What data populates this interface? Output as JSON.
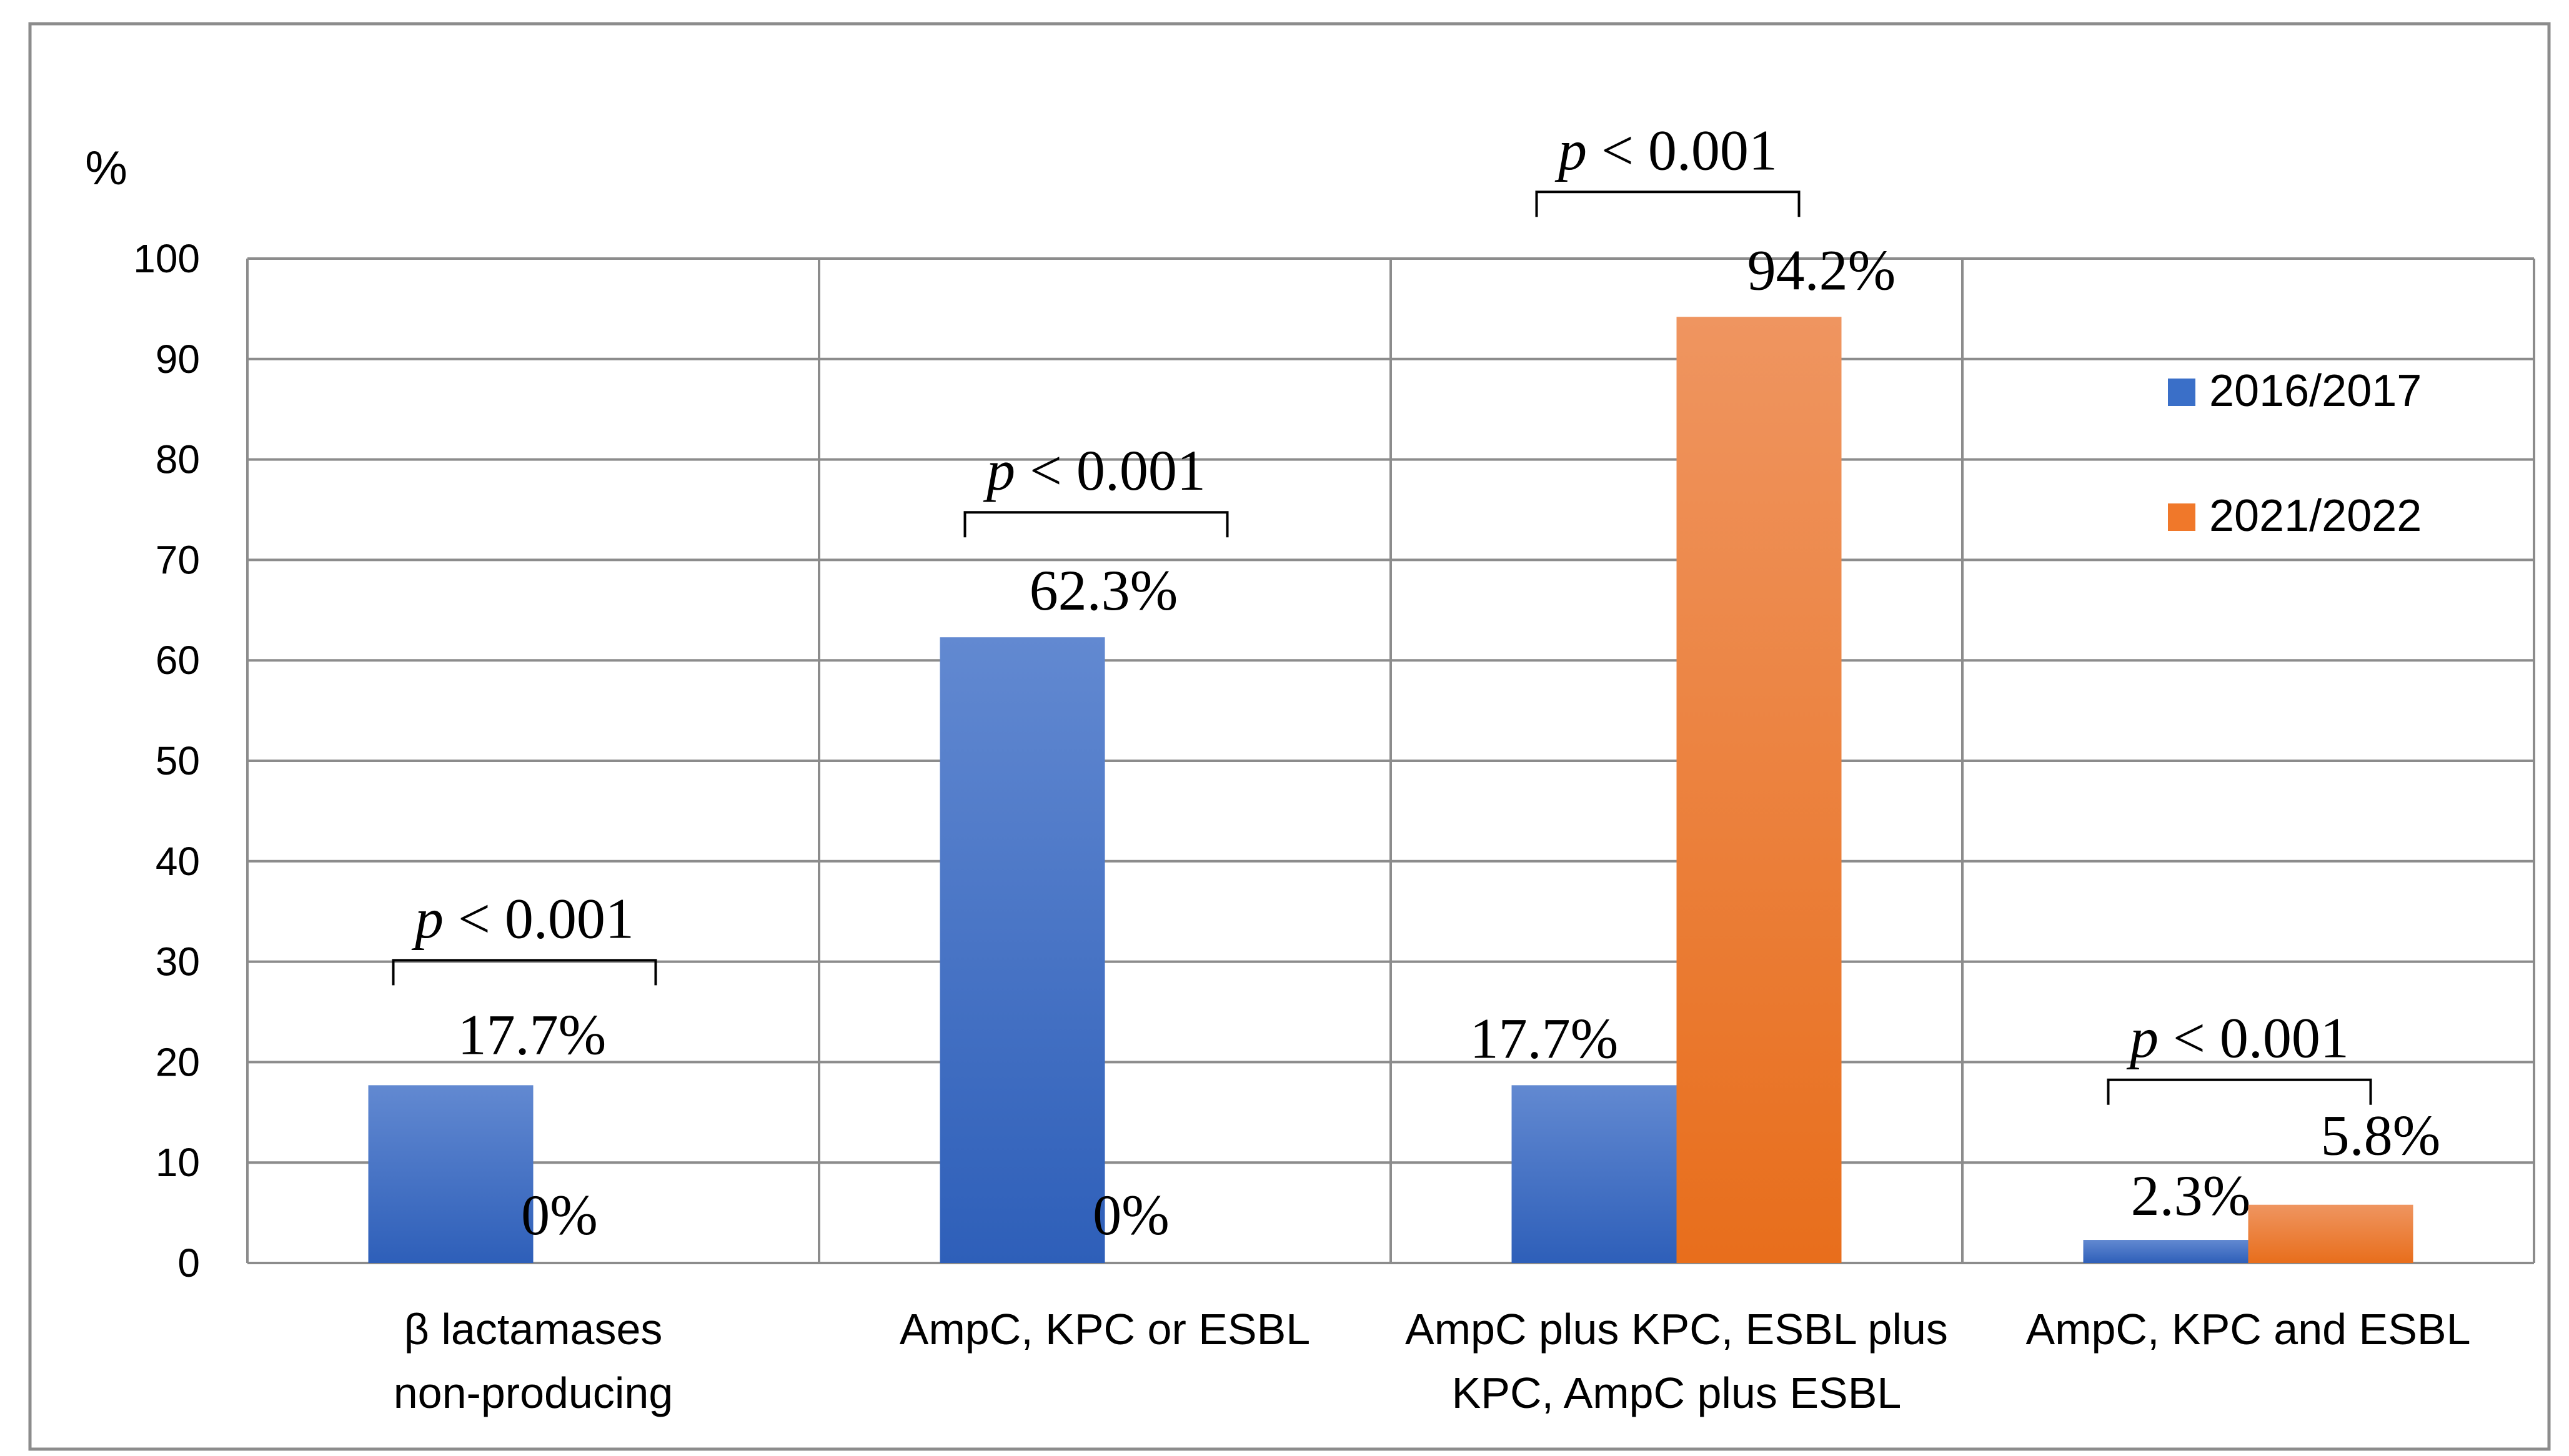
{
  "chart_data": {
    "type": "bar",
    "ylabel": "%",
    "ylim": [
      0,
      100
    ],
    "yticks": [
      0,
      10,
      20,
      30,
      40,
      50,
      60,
      70,
      80,
      90,
      100
    ],
    "grid": true,
    "legend_position": "right",
    "categories": [
      [
        "β lactamases",
        "non-producing"
      ],
      [
        "AmpC, KPC or ESBL"
      ],
      [
        "AmpC plus KPC, ESBL plus",
        "KPC, AmpC plus  ESBL"
      ],
      [
        "AmpC, KPC and ESBL"
      ]
    ],
    "series": [
      {
        "name": "2016/2017",
        "values": [
          17.7,
          62.3,
          17.7,
          2.3
        ],
        "labels": [
          "17.7%",
          "62.3%",
          "17.7%",
          "2.3%"
        ],
        "color": "#3a6fc8"
      },
      {
        "name": "2021/2022",
        "values": [
          0,
          0,
          94.2,
          5.8
        ],
        "labels": [
          "0%",
          "0%",
          "94.2%",
          "5.8%"
        ],
        "color": "#f0782a"
      }
    ],
    "annotations": [
      {
        "category": 0,
        "p": "p",
        "text": " < 0.001"
      },
      {
        "category": 1,
        "p": "p",
        "text": " < 0.001"
      },
      {
        "category": 2,
        "p": "p",
        "text": " < 0.001"
      },
      {
        "category": 3,
        "p": "p",
        "text": " < 0.001"
      }
    ]
  }
}
